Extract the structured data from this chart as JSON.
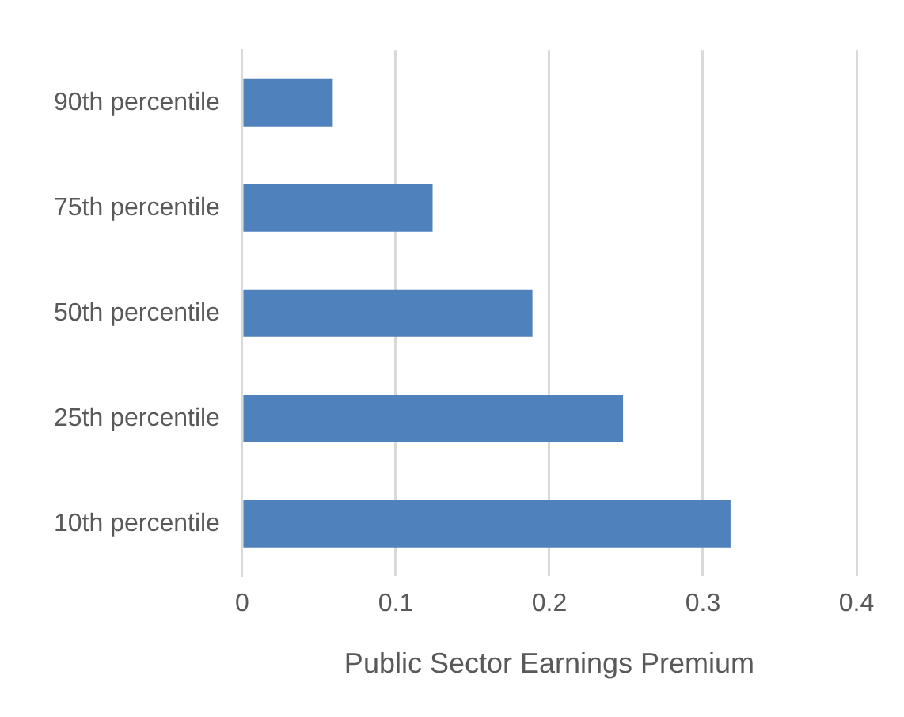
{
  "chart_data": {
    "type": "bar",
    "orientation": "horizontal",
    "xlabel": "Public Sector Earnings Premium",
    "categories": [
      "90th percentile",
      "75th percentile",
      "50th percentile",
      "25th percentile",
      "10th percentile"
    ],
    "values": [
      0.059,
      0.124,
      0.189,
      0.248,
      0.318
    ],
    "color": "#4f81bd",
    "xlim": [
      0,
      0.4
    ],
    "xticks": [
      0,
      0.1,
      0.2,
      0.3,
      0.4
    ],
    "grid": "x",
    "legend": false
  }
}
